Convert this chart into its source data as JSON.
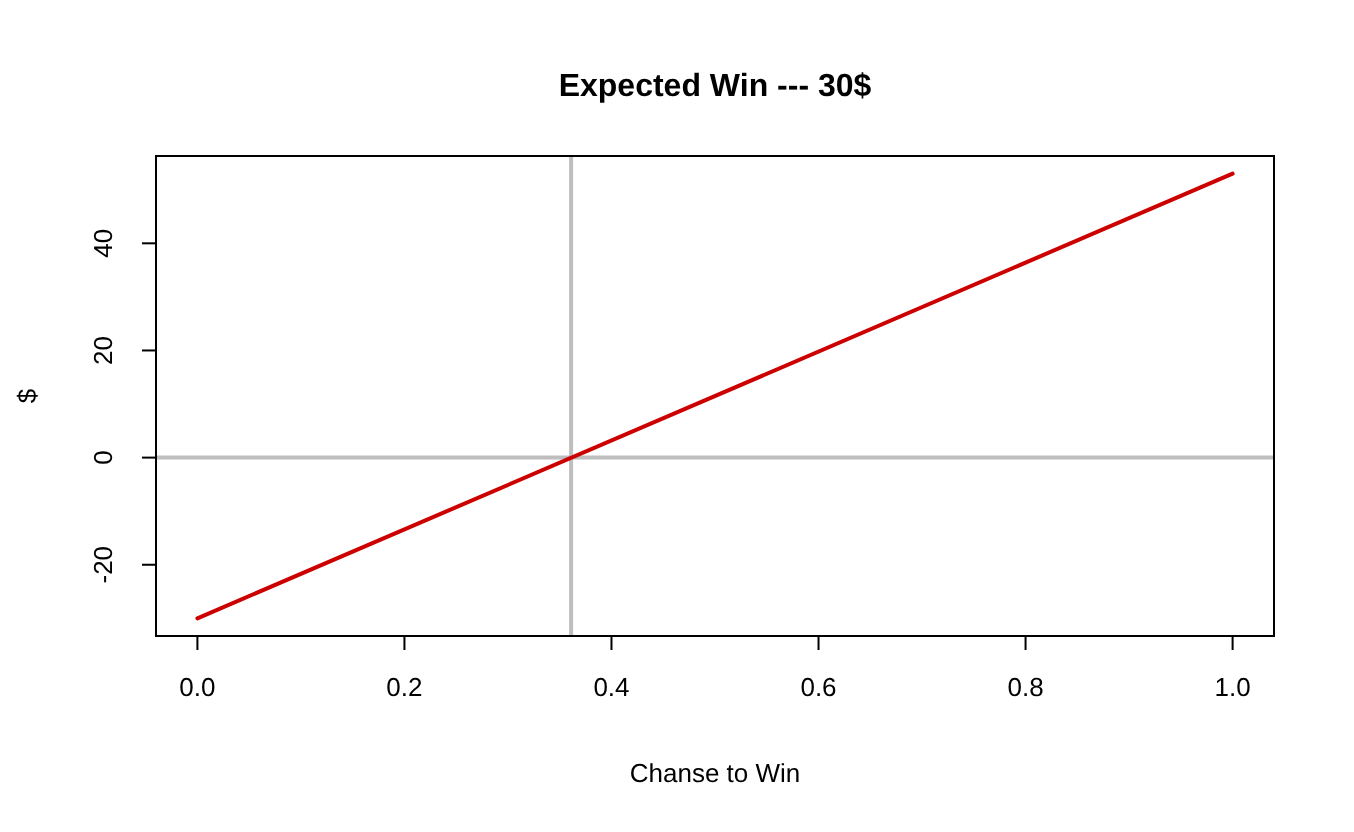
{
  "chart_data": {
    "type": "line",
    "title": "Expected Win --- 30$",
    "xlabel": "Chanse to Win",
    "ylabel": "$",
    "x": [
      0,
      1
    ],
    "series": [
      {
        "color": "#cd0000",
        "values": [
          -30,
          53
        ]
      }
    ],
    "xlim": [
      -0.04,
      1.04
    ],
    "ylim": [
      -33.3,
      56.3
    ],
    "xticks": [
      {
        "value": 0,
        "label": "0.0"
      },
      0.2,
      0.4,
      0.6,
      0.8,
      {
        "value": 1,
        "label": "1.0"
      }
    ],
    "yticks": [
      -20,
      0,
      20,
      40
    ],
    "ref_lines": [
      {
        "axis": "x",
        "value": 0.361,
        "color": "#bebebe"
      },
      {
        "axis": "y",
        "value": 0,
        "color": "#bebebe"
      }
    ]
  }
}
